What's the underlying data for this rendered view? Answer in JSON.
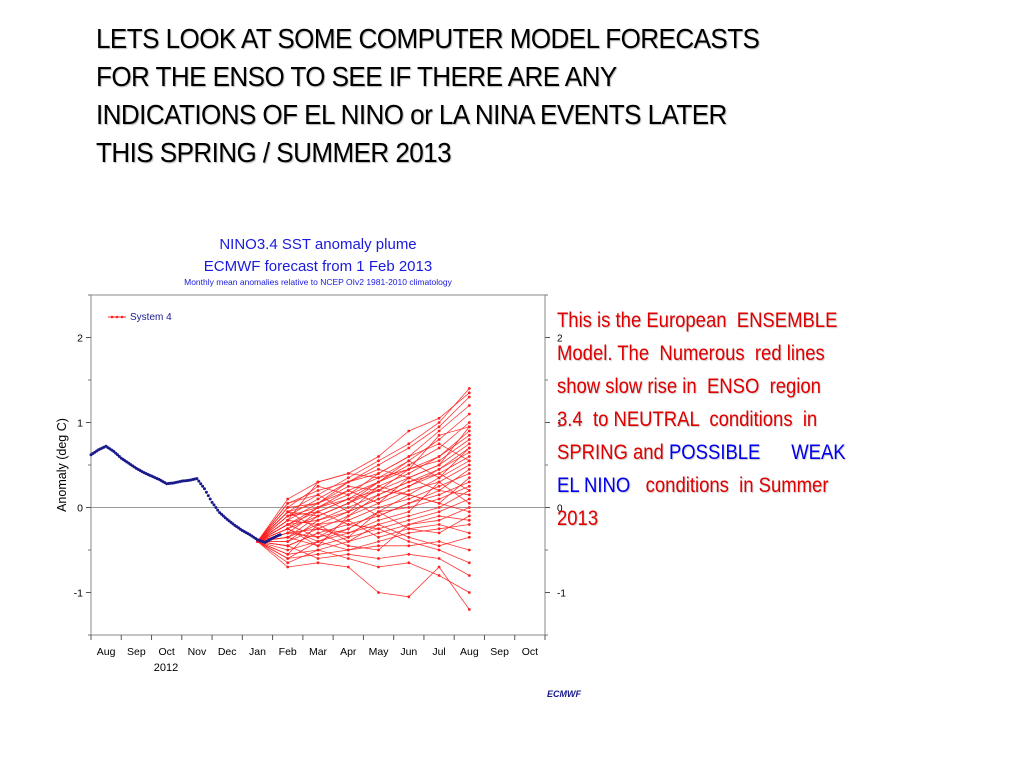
{
  "slide": {
    "title_lines": [
      "LETS LOOK AT SOME  COMPUTER MODEL  FORECASTS",
      "FOR THE ENSO  TO SEE IF THERE ARE ANY",
      "INDICATIONS OF  EL NINO or LA  NINA EVENTS LATER",
      "THIS SPRING / SUMMER  2013"
    ]
  },
  "description": {
    "line1": "This is the European  ENSEMBLE",
    "line2": "Model. The  Numerous  red lines",
    "line3": "show slow rise in  ENSO  region",
    "line4": "3.4  to NEUTRAL  conditions  in",
    "line5_a": "SPRING and ",
    "line5_b": "POSSIBLE      WEAK",
    "line6_a": "EL NINO",
    "line6_b": "   conditions  in Summer",
    "line7": "2013",
    "colors": {
      "body": "#e00000",
      "highlight": "#0000ee"
    }
  },
  "chart_data": {
    "type": "line",
    "title": "NINO3.4 SST anomaly plume",
    "subtitle": "ECMWF forecast from 1 Feb 2013",
    "note": "Monthly mean anomalies relative to NCEP OIv2 1981-2010 climatology",
    "ylabel": "Anomaly (deg C)",
    "xlabel": "",
    "year_label": "2012",
    "credit": "ECMWF",
    "legend_label": "System 4",
    "legend_position": "top-left",
    "x_tick_labels": [
      "Aug",
      "Sep",
      "Oct",
      "Nov",
      "Dec",
      "Jan",
      "Feb",
      "Mar",
      "Apr",
      "May",
      "Jun",
      "Jul",
      "Aug",
      "Sep",
      "Oct"
    ],
    "y_ticks": [
      -1,
      0,
      1,
      2
    ],
    "ylim": [
      -1.5,
      2.5
    ],
    "xlim": [
      -0.5,
      14.5
    ],
    "grid": false,
    "colors": {
      "observed": "#1a1a8c",
      "forecast": "#ff2020",
      "title": "#1a1adc"
    },
    "observed": {
      "x": [
        -0.5,
        -0.25,
        0,
        0.25,
        0.5,
        0.75,
        1,
        1.25,
        1.5,
        1.75,
        2,
        2.25,
        2.5,
        2.75,
        3,
        3.25,
        3.5,
        3.75,
        4,
        4.25,
        4.5,
        4.75,
        5,
        5.25,
        5.5,
        5.75
      ],
      "y": [
        0.62,
        0.68,
        0.72,
        0.66,
        0.58,
        0.52,
        0.46,
        0.41,
        0.37,
        0.33,
        0.28,
        0.29,
        0.31,
        0.32,
        0.34,
        0.22,
        0.06,
        -0.06,
        -0.14,
        -0.21,
        -0.27,
        -0.32,
        -0.38,
        -0.41,
        -0.36,
        -0.32
      ]
    },
    "forecast_x": [
      5,
      6,
      7,
      8,
      9,
      10,
      11,
      12
    ],
    "forecast_series": [
      {
        "values": [
          -0.4,
          -0.05,
          0.15,
          0.35,
          0.55,
          0.75,
          1.0,
          1.4
        ]
      },
      {
        "values": [
          -0.4,
          0.1,
          0.3,
          0.4,
          0.6,
          0.9,
          1.05,
          1.35
        ]
      },
      {
        "values": [
          -0.4,
          0.05,
          0.2,
          0.3,
          0.5,
          0.7,
          0.95,
          1.3
        ]
      },
      {
        "values": [
          -0.4,
          -0.1,
          0.1,
          0.3,
          0.4,
          0.6,
          0.9,
          1.2
        ]
      },
      {
        "values": [
          -0.4,
          0.0,
          0.05,
          0.2,
          0.35,
          0.55,
          0.8,
          1.1
        ]
      },
      {
        "values": [
          -0.4,
          -0.2,
          0.0,
          0.1,
          0.3,
          0.5,
          0.7,
          1.0
        ]
      },
      {
        "values": [
          -0.4,
          -0.15,
          0.05,
          0.25,
          0.2,
          0.45,
          0.85,
          0.95
        ]
      },
      {
        "values": [
          -0.4,
          -0.25,
          -0.1,
          0.05,
          0.25,
          0.4,
          0.6,
          0.9
        ]
      },
      {
        "values": [
          -0.4,
          -0.1,
          0.0,
          0.15,
          0.3,
          0.45,
          0.55,
          0.8
        ]
      },
      {
        "values": [
          -0.4,
          -0.3,
          -0.05,
          0.1,
          0.2,
          0.35,
          0.5,
          0.75
        ]
      },
      {
        "values": [
          -0.4,
          -0.2,
          -0.15,
          0.0,
          0.15,
          0.3,
          0.45,
          0.7
        ]
      },
      {
        "values": [
          -0.4,
          -0.35,
          -0.2,
          -0.05,
          0.1,
          0.25,
          0.4,
          0.6
        ]
      },
      {
        "values": [
          -0.4,
          -0.05,
          -0.1,
          0.05,
          0.2,
          0.15,
          0.35,
          0.55
        ]
      },
      {
        "values": [
          -0.4,
          -0.3,
          -0.25,
          -0.1,
          0.05,
          0.2,
          0.3,
          0.5
        ]
      },
      {
        "values": [
          -0.4,
          -0.15,
          -0.2,
          -0.15,
          0.0,
          0.1,
          0.25,
          0.4
        ]
      },
      {
        "values": [
          -0.4,
          -0.45,
          -0.3,
          -0.2,
          -0.1,
          0.05,
          0.15,
          0.3
        ]
      },
      {
        "values": [
          -0.4,
          -0.2,
          -0.35,
          -0.25,
          -0.05,
          0.0,
          0.1,
          0.25
        ]
      },
      {
        "values": [
          -0.4,
          -0.5,
          -0.4,
          -0.3,
          -0.2,
          -0.1,
          0.0,
          0.2
        ]
      },
      {
        "values": [
          -0.4,
          -0.35,
          -0.45,
          -0.35,
          -0.25,
          -0.15,
          -0.05,
          0.1
        ]
      },
      {
        "values": [
          -0.4,
          -0.55,
          -0.5,
          -0.4,
          -0.3,
          -0.2,
          -0.15,
          0.0
        ]
      },
      {
        "values": [
          -0.4,
          -0.6,
          -0.55,
          -0.5,
          -0.4,
          -0.3,
          -0.25,
          -0.2
        ]
      },
      {
        "values": [
          -0.4,
          -0.25,
          -0.4,
          -0.5,
          -0.45,
          -0.45,
          -0.4,
          -0.5
        ]
      },
      {
        "values": [
          -0.4,
          -0.45,
          -0.6,
          -0.55,
          -0.6,
          -0.55,
          -0.6,
          -0.8
        ]
      },
      {
        "values": [
          -0.4,
          -0.65,
          -0.5,
          -0.6,
          -0.7,
          -0.65,
          -0.8,
          -1.0
        ]
      },
      {
        "values": [
          -0.4,
          -0.7,
          -0.65,
          -0.7,
          -1.0,
          -1.05,
          -0.7,
          -1.2
        ]
      },
      {
        "values": [
          -0.4,
          -0.15,
          0.3,
          0.4,
          0.35,
          0.45,
          0.6,
          0.85
        ]
      },
      {
        "values": [
          -0.4,
          0.05,
          0.15,
          -0.05,
          0.1,
          0.25,
          0.45,
          0.65
        ]
      },
      {
        "values": [
          -0.4,
          -0.25,
          0.0,
          0.2,
          0.05,
          0.35,
          0.2,
          0.45
        ]
      },
      {
        "values": [
          -0.4,
          -0.4,
          -0.15,
          -0.05,
          0.25,
          0.15,
          0.05,
          0.35
        ]
      },
      {
        "values": [
          -0.4,
          -0.05,
          -0.25,
          -0.3,
          -0.15,
          -0.05,
          0.3,
          0.05
        ]
      },
      {
        "values": [
          -0.4,
          -0.3,
          -0.35,
          -0.15,
          -0.35,
          -0.25,
          -0.3,
          -0.1
        ]
      },
      {
        "values": [
          -0.4,
          -0.55,
          -0.2,
          -0.4,
          -0.2,
          -0.35,
          -0.45,
          -0.35
        ]
      },
      {
        "values": [
          -0.4,
          -0.2,
          -0.05,
          0.1,
          -0.1,
          0.05,
          0.2,
          0.15
        ]
      },
      {
        "values": [
          -0.4,
          0.0,
          0.25,
          0.15,
          0.4,
          0.6,
          0.75,
          0.55
        ]
      },
      {
        "values": [
          -0.4,
          -0.45,
          -0.3,
          -0.45,
          -0.5,
          -0.2,
          -0.1,
          -0.15
        ]
      },
      {
        "values": [
          -0.4,
          -0.1,
          -0.05,
          -0.2,
          -0.25,
          -0.4,
          -0.5,
          -0.65
        ]
      },
      {
        "values": [
          -0.4,
          -0.35,
          -0.1,
          0.05,
          0.3,
          0.55,
          0.35,
          0.7
        ]
      },
      {
        "values": [
          -0.4,
          -0.6,
          -0.4,
          -0.25,
          -0.05,
          -0.25,
          -0.2,
          -0.3
        ]
      },
      {
        "values": [
          -0.4,
          -0.25,
          -0.45,
          -0.1,
          0.15,
          0.3,
          0.4,
          0.2
        ]
      },
      {
        "values": [
          -0.4,
          -0.05,
          0.05,
          0.3,
          0.45,
          0.35,
          0.5,
          0.95
        ]
      },
      {
        "values": [
          -0.4,
          -0.4,
          -0.25,
          -0.35,
          -0.05,
          0.15,
          0.05,
          -0.05
        ]
      }
    ]
  }
}
